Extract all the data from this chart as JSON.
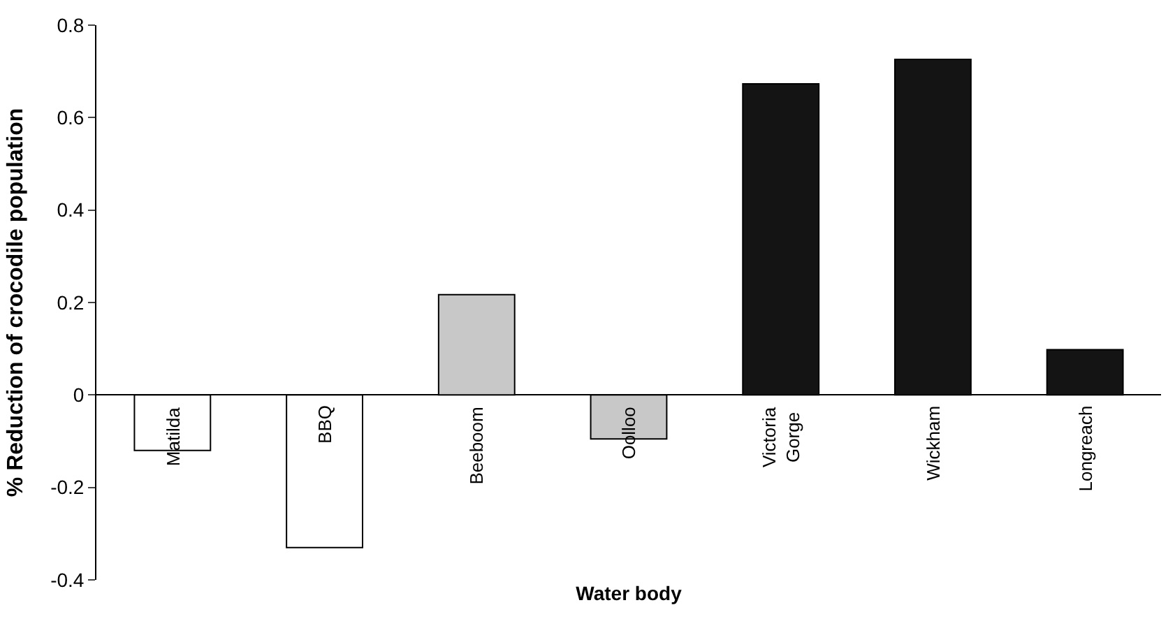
{
  "chart_data": {
    "type": "bar",
    "xlabel": "Water body",
    "ylabel": "% Reduction of crocodile population",
    "categories": [
      "Matilda",
      "BBQ",
      "Beeboom",
      "Oolloo",
      "Victoria Gorge",
      "Wickham",
      "Longreach"
    ],
    "values": [
      -0.12,
      -0.33,
      0.217,
      -0.095,
      0.673,
      0.726,
      0.098
    ],
    "colors": [
      "#ffffff",
      "#ffffff",
      "#c8c8c8",
      "#c8c8c8",
      "#141414",
      "#141414",
      "#141414"
    ],
    "ylim": [
      -0.4,
      0.8
    ],
    "yticks": [
      {
        "value": -0.4,
        "label": "-0.4"
      },
      {
        "value": -0.2,
        "label": "-0.2"
      },
      0,
      0.2,
      0.4,
      0.6,
      0.8
    ]
  }
}
